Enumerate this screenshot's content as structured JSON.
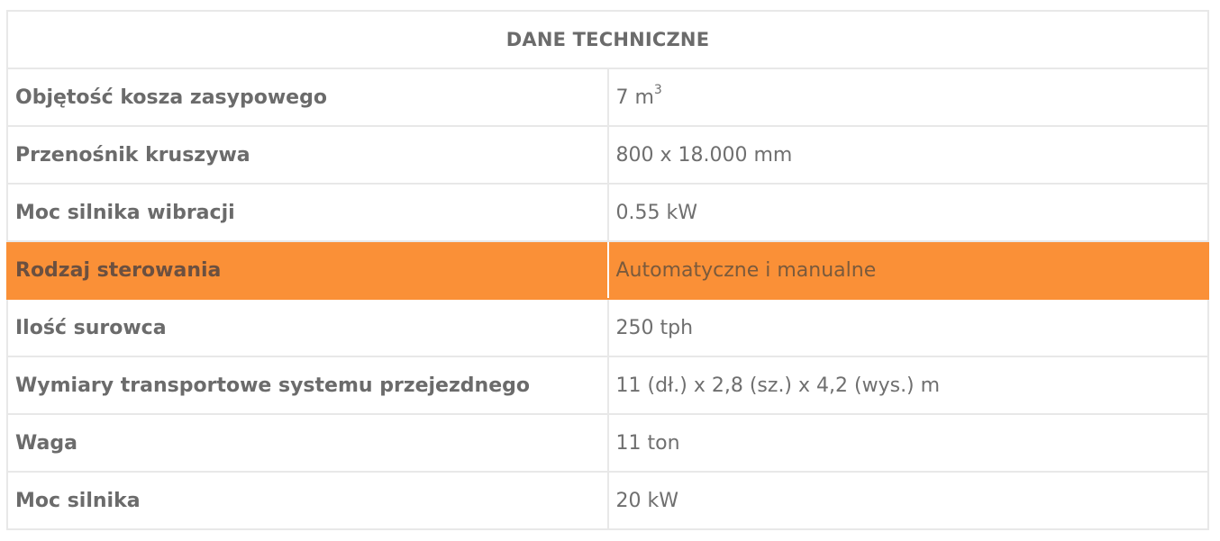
{
  "table": {
    "title": "DANE TECHNICZNE",
    "rows": [
      {
        "label": "Objętość kosza zasypowego",
        "value": "7 m",
        "value_sup": "3"
      },
      {
        "label": "Przenośnik kruszywa",
        "value": "800 x 18.000 mm"
      },
      {
        "label": "Moc silnika wibracji",
        "value": "0.55 kW"
      },
      {
        "label": "Rodzaj sterowania",
        "value": "Automatyczne i manualne",
        "highlighted": true
      },
      {
        "label": "Ilość surowca",
        "value": "250 tph"
      },
      {
        "label": "Wymiary transportowe systemu przejezdnego",
        "value": "11 (dł.) x 2,8 (sz.) x 4,2 (wys.) m"
      },
      {
        "label": "Waga",
        "value": "11 ton"
      },
      {
        "label": "Moc silnika",
        "value": "20 kW"
      }
    ]
  },
  "colors": {
    "highlight_row": "#fa9037",
    "border": "#e8e8e8",
    "text": "#6b6b6b"
  }
}
